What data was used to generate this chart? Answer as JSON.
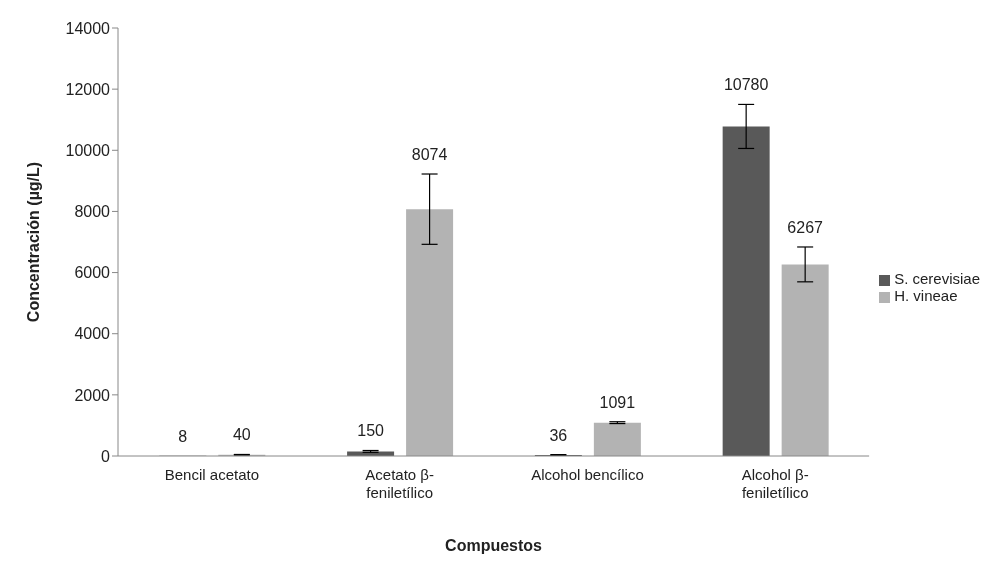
{
  "chart_data": {
    "type": "bar",
    "xlabel": "Compuestos",
    "ylabel": "Concentración (µg/L)",
    "categories": [
      "Bencil  acetato",
      "Acetato β-feniletílico",
      "Alcohol bencílico",
      "Alcohol β-feniletílico"
    ],
    "series": [
      {
        "name": "S. cerevisiae",
        "color": "#595959",
        "values": [
          8,
          150,
          36,
          10780
        ],
        "errors": [
          null,
          30,
          10,
          720
        ]
      },
      {
        "name": "H. vineae",
        "color": "#b3b3b3",
        "values": [
          40,
          8074,
          1091,
          6267
        ],
        "errors": [
          10,
          1150,
          30,
          570
        ]
      }
    ],
    "ylim": [
      0,
      14000
    ],
    "yticks": [
      0,
      2000,
      4000,
      6000,
      8000,
      10000,
      12000,
      14000
    ],
    "data_labels": true,
    "legend": "right",
    "grid": false
  }
}
